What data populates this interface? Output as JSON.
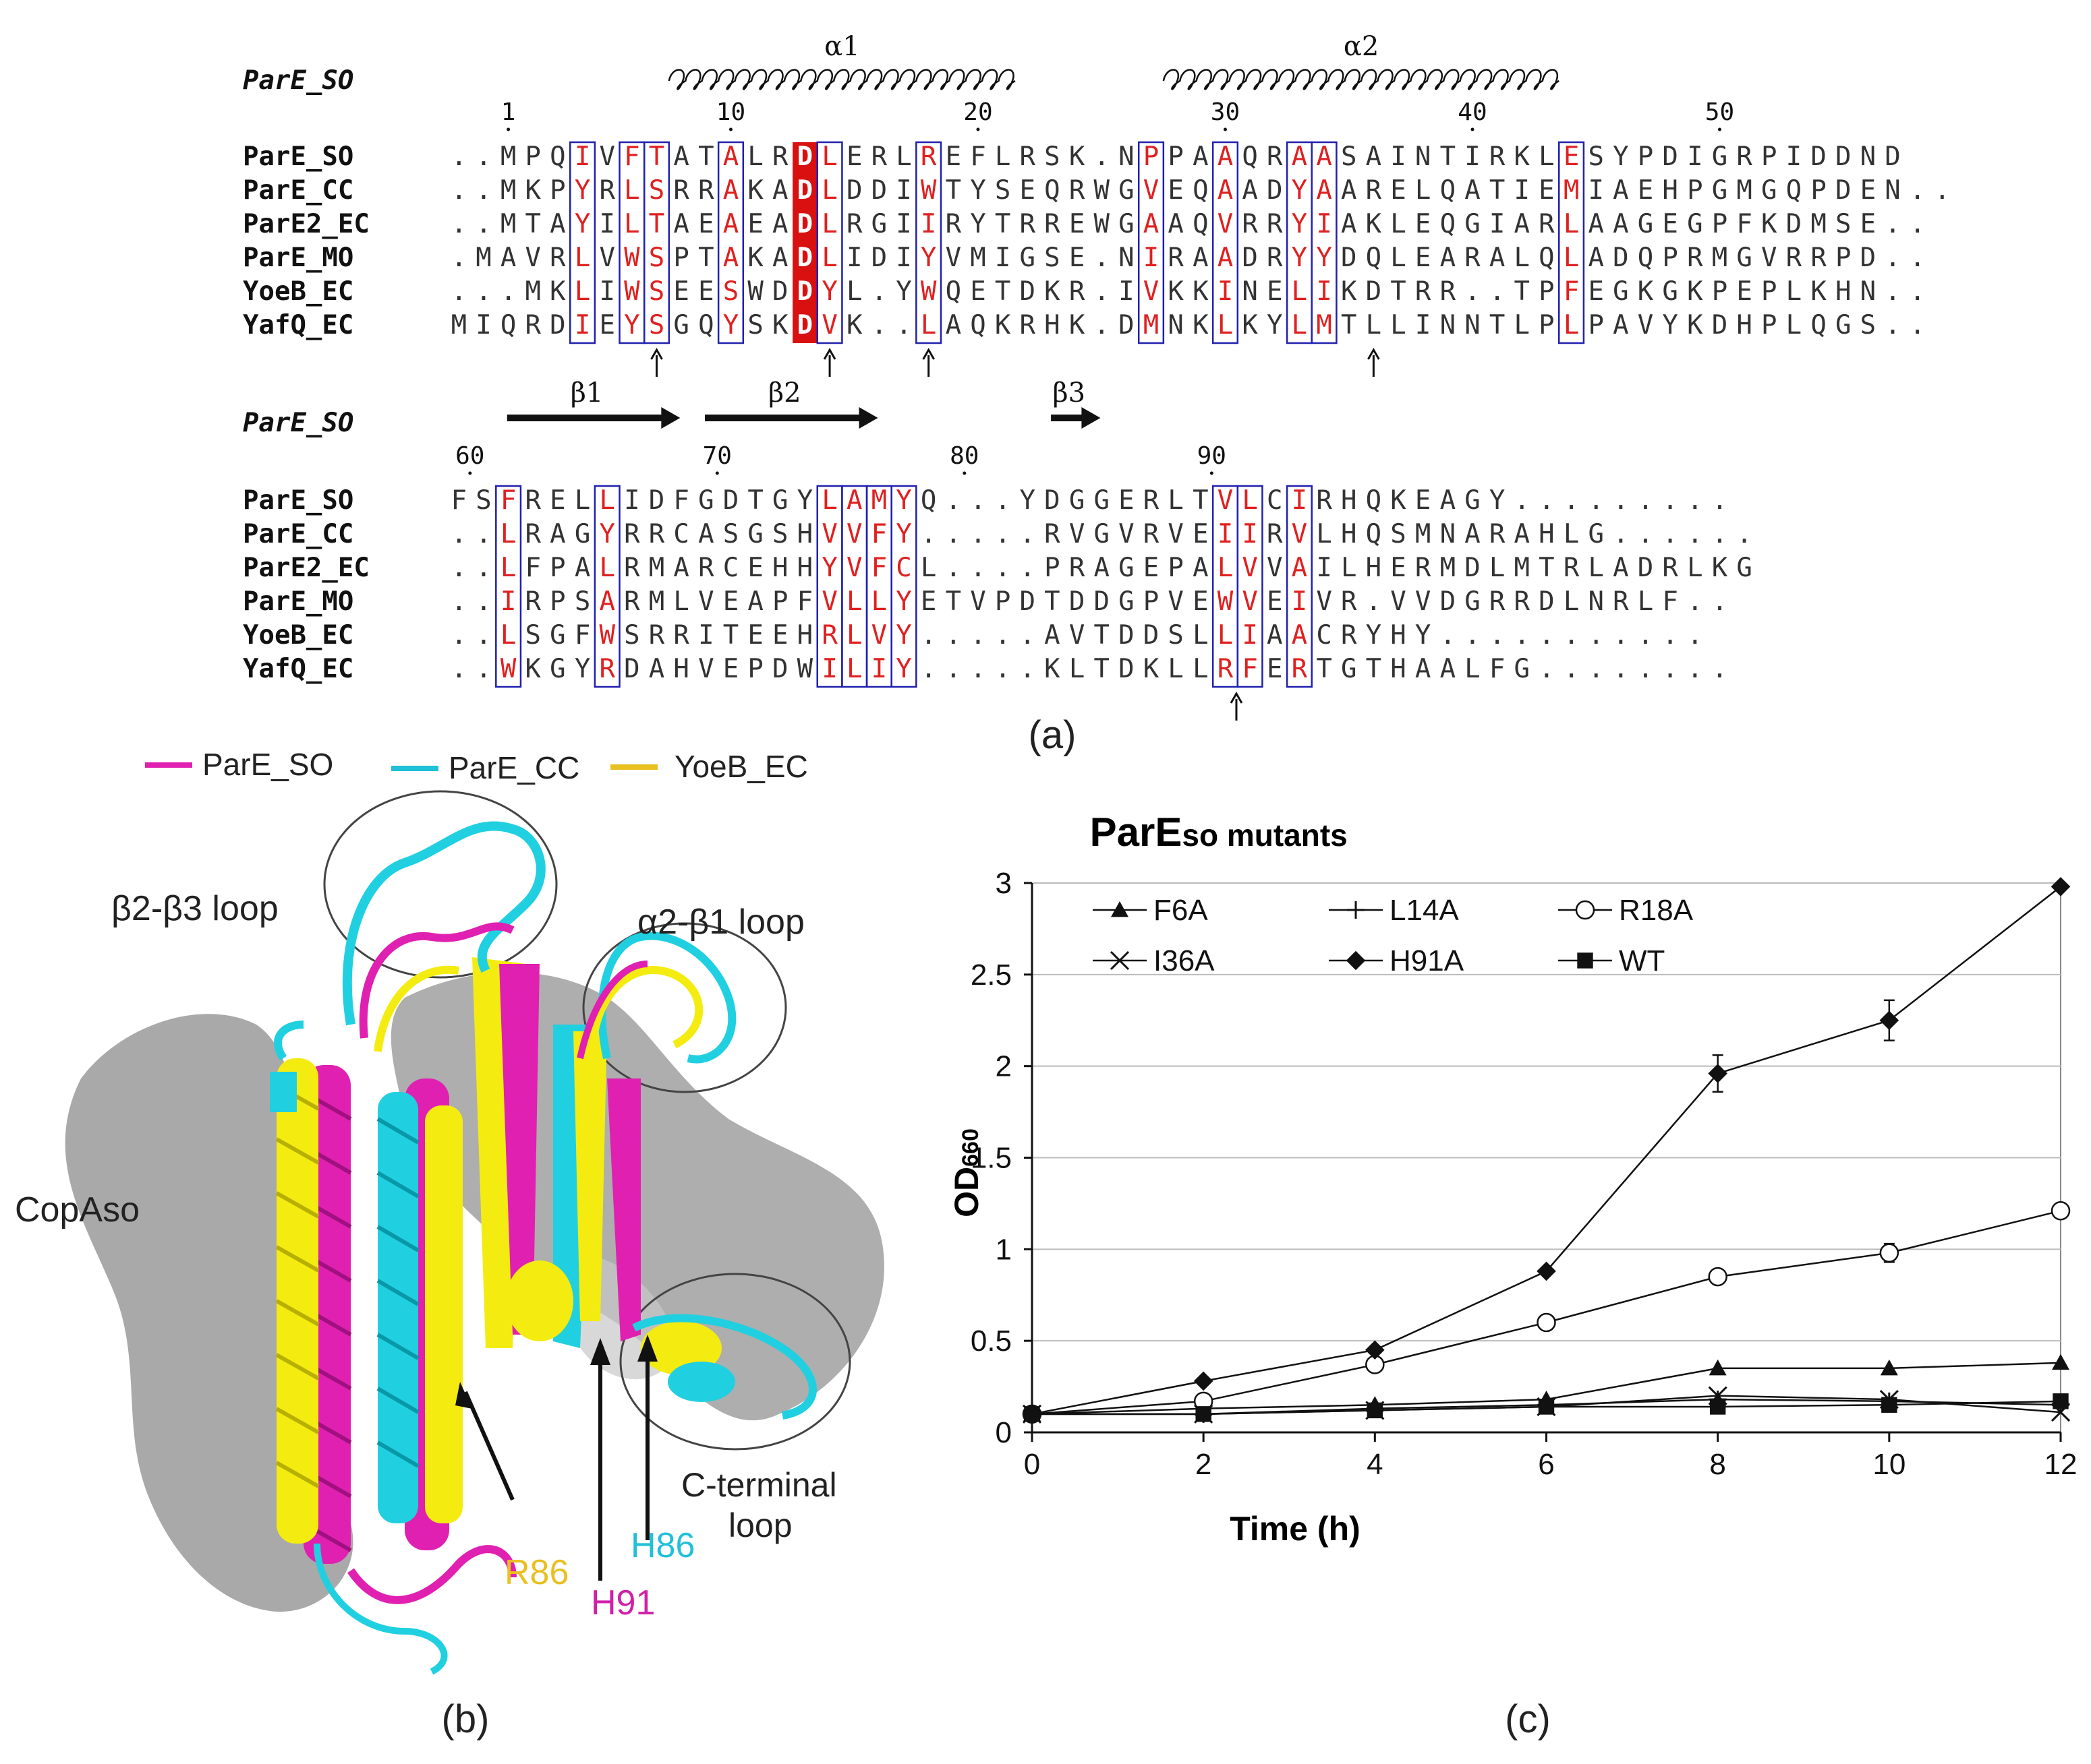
{
  "figure": {
    "label_a": "(a)",
    "label_b": "(b)",
    "label_c": "(c)"
  },
  "alignment": {
    "reference": "ParE_SO",
    "block1": {
      "ruler": [
        {
          "pos": 1,
          "text": "1"
        },
        {
          "pos": 10,
          "text": "10"
        },
        {
          "pos": 20,
          "text": "20"
        },
        {
          "pos": 30,
          "text": "30"
        },
        {
          "pos": 40,
          "text": "40"
        },
        {
          "pos": 50,
          "text": "50"
        }
      ],
      "helices": [
        {
          "label": "α1",
          "start": 8,
          "end": 21
        },
        {
          "label": "α2",
          "start": 28,
          "end": 43
        }
      ],
      "rows": [
        {
          "name": "ParE_SO",
          "seq": "..MPQIVFTATALRDLERLREFLRSK.NPPAAQRAASAINTIRKLESYPDIGRPIDDND"
        },
        {
          "name": "ParE_CC",
          "seq": "..MKPYRLSRRAKADLDDIWTYSEQRWGVEQAADYAARELQATIEMIAEHPGMGQPDEN.."
        },
        {
          "name": "ParE2_EC",
          "seq": "..MTAYILTAEAEADLRGIIRYTRREWGAAQVRRYIAKLEQGIARLAAGEGPFKDMSE.."
        },
        {
          "name": "ParE_MO",
          "seq": ".MAVRLVWSPTAKADLIDIYVMIGSE.NIRAADRYYDQLEARALQLADQPRMGVRRPD.."
        },
        {
          "name": "YoeB_EC",
          "seq": "...MKLIWSEESWDDYL.YWQETDKR.IVKKINELIKDTRR..TPFEGKGKPEPLKHN.."
        },
        {
          "name": "YafQ_EC",
          "seq": "MIQRDIEYSGQYSKDVK..LAQKRHK.DMNKLKYLMTLLINNTLPLPAVYKDHPLQGS.."
        }
      ],
      "arrows": [
        7,
        14,
        18,
        36
      ]
    },
    "block2": {
      "ruler": [
        {
          "pos": 60,
          "text": "60"
        },
        {
          "pos": 70,
          "text": "70"
        },
        {
          "pos": 80,
          "text": "80"
        },
        {
          "pos": 90,
          "text": "90"
        }
      ],
      "strands": [
        {
          "label": "β1",
          "start": 62,
          "end": 68
        },
        {
          "label": "β2",
          "start": 70,
          "end": 76
        },
        {
          "label": "β3",
          "start": 84,
          "end": 85
        }
      ],
      "rows": [
        {
          "name": "ParE_SO",
          "seq": "FSFRELLIDFGDTGYLAMYQ...YDGGERLTVLCIRHQKEAGY........."
        },
        {
          "name": "ParE_CC",
          "seq": "..LRAGYRRCASGSHVVFY.....RVGVRVEIIRVLHQSMNARAHLG......"
        },
        {
          "name": "ParE2_EC",
          "seq": "..LFPALRMARCEHHYVFCL....PRAGEPALVVAILHERMDLMTRLADRLKG"
        },
        {
          "name": "ParE_MO",
          "seq": "..IRPSARMLVEAPFVLLYETVPDTDDGPVEWVEIVR.VVDGRRDLNRLF.."
        },
        {
          "name": "YoeB_EC",
          "seq": "..LSGFWSRRITEEHRLVY.....AVTDDSLLIAACRYHY..........."
        },
        {
          "name": "YafQ_EC",
          "seq": "..WKGYRDAHVEPDWILIY.....KLTDKLLRFERTGTHAALFG........"
        }
      ],
      "arrows": [
        91
      ]
    }
  },
  "structure": {
    "legend": [
      {
        "name": "ParE_SO",
        "color": "#e020b0"
      },
      {
        "name": "ParE_CC",
        "color": "#20c0d8"
      },
      {
        "name": "YoeB_EC",
        "color": "#e8c020"
      }
    ],
    "labels": {
      "b2b3_loop": "β2-β3 loop",
      "a2b1_loop": "α2-β1 loop",
      "copa": "CopAso",
      "cterm_1": "C-terminal",
      "cterm_2": "loop",
      "r86": "R86",
      "h91": "H91",
      "h86": "H86"
    },
    "label_colors": {
      "r86": "#e8c020",
      "h91": "#d020a8",
      "h86": "#20c0d8"
    }
  },
  "chart_data": {
    "type": "line",
    "title_main": "ParE",
    "title_sub": "so mutants",
    "xlabel": "Time (h)",
    "ylabel_main": "OD",
    "ylabel_sub": "660",
    "xlim": [
      0,
      12
    ],
    "ylim": [
      0,
      3
    ],
    "x_ticks": [
      0,
      2,
      4,
      6,
      8,
      10,
      12
    ],
    "y_ticks": [
      0,
      0.5,
      1,
      1.5,
      2,
      2.5,
      3
    ],
    "y_tick_labels": [
      "0",
      "0.5",
      "1",
      "1.5",
      "2",
      "2.5",
      "3"
    ],
    "grid": "horizontal",
    "legend_position": "top-left",
    "x": [
      0,
      2,
      4,
      6,
      8,
      10,
      12
    ],
    "series": [
      {
        "name": "F6A",
        "marker": "triangle",
        "values": [
          0.1,
          0.13,
          0.15,
          0.18,
          0.35,
          0.35,
          0.38
        ]
      },
      {
        "name": "L14A",
        "marker": "plus",
        "values": [
          0.1,
          0.1,
          0.13,
          0.15,
          0.18,
          0.17,
          0.15
        ]
      },
      {
        "name": "R18A",
        "marker": "circle",
        "values": [
          0.1,
          0.17,
          0.37,
          0.6,
          0.85,
          0.98,
          1.21
        ]
      },
      {
        "name": "I36A",
        "marker": "x",
        "values": [
          0.1,
          0.1,
          0.12,
          0.14,
          0.2,
          0.18,
          0.11
        ]
      },
      {
        "name": "H91A",
        "marker": "diamond",
        "values": [
          0.1,
          0.28,
          0.45,
          0.88,
          1.96,
          2.25,
          2.98
        ]
      },
      {
        "name": "WT",
        "marker": "square",
        "values": [
          0.1,
          0.1,
          0.12,
          0.14,
          0.14,
          0.15,
          0.17
        ]
      }
    ],
    "error_bars": {
      "H91A": [
        0,
        0,
        0,
        0,
        0.1,
        0.11,
        0
      ],
      "R18A": [
        0,
        0,
        0,
        0,
        0,
        0.05,
        0
      ]
    }
  }
}
